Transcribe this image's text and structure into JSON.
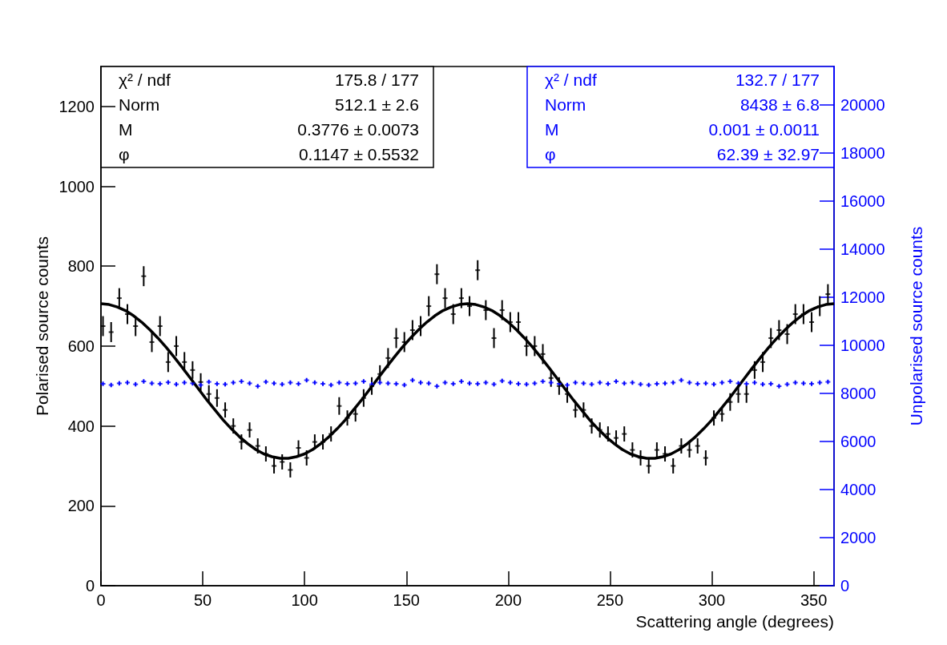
{
  "chart_data": {
    "type": "scatter",
    "xlabel": "Scattering angle (degrees)",
    "ylabel": "Polarised source counts",
    "y2label": "Unpolarised source counts",
    "xlim": [
      0,
      360
    ],
    "xticks": [
      0,
      50,
      100,
      150,
      200,
      250,
      300,
      350
    ],
    "ylim": [
      0,
      1300
    ],
    "yticks": [
      0,
      200,
      400,
      600,
      800,
      1000,
      1200
    ],
    "y2lim": [
      0,
      21600
    ],
    "y2ticks": [
      0,
      2000,
      4000,
      6000,
      8000,
      10000,
      12000,
      14000,
      16000,
      18000,
      20000
    ],
    "annotations": [
      "χ² / ndf",
      "175.8 / 177",
      "Norm",
      "512.1 ± 2.6",
      "M",
      "0.3776 ± 0.0073",
      "φ",
      "0.1147 ± 0.5532",
      "χ² / ndf",
      "132.7 / 177",
      "Norm",
      "8438 ± 6.8",
      "M",
      "0.001 ± 0.0011",
      "φ",
      "62.39 ± 32.97"
    ],
    "series": [
      {
        "color": "#000000",
        "x": [
          1,
          5,
          9,
          13,
          17,
          21,
          25,
          29,
          33,
          37,
          41,
          45,
          49,
          53,
          57,
          61,
          65,
          69,
          73,
          77,
          81,
          85,
          89,
          93,
          97,
          101,
          105,
          109,
          113,
          117,
          121,
          125,
          129,
          133,
          137,
          141,
          145,
          149,
          153,
          157,
          161,
          165,
          169,
          173,
          177,
          181,
          185,
          189,
          193,
          197,
          201,
          205,
          209,
          213,
          217,
          221,
          225,
          229,
          233,
          237,
          241,
          245,
          249,
          253,
          257,
          261,
          265,
          269,
          273,
          277,
          281,
          285,
          289,
          293,
          297,
          301,
          305,
          309,
          313,
          317,
          321,
          325,
          329,
          333,
          337,
          341,
          345,
          349,
          353,
          357
        ],
        "values": [
          650,
          635,
          720,
          680,
          650,
          775,
          610,
          650,
          560,
          600,
          560,
          540,
          510,
          480,
          470,
          440,
          400,
          360,
          390,
          350,
          330,
          300,
          310,
          290,
          345,
          320,
          360,
          360,
          380,
          450,
          420,
          430,
          470,
          500,
          530,
          570,
          620,
          610,
          640,
          650,
          700,
          780,
          720,
          680,
          720,
          700,
          790,
          690,
          620,
          690,
          660,
          660,
          600,
          600,
          580,
          520,
          500,
          480,
          440,
          440,
          400,
          390,
          380,
          370,
          380,
          340,
          320,
          300,
          340,
          330,
          300,
          350,
          340,
          350,
          320,
          420,
          430,
          460,
          480,
          480,
          540,
          560,
          620,
          640,
          630,
          680,
          680,
          660,
          700,
          730
        ],
        "errors": [
          25,
          25,
          25,
          25,
          25,
          25,
          25,
          25,
          25,
          25,
          25,
          22,
          22,
          22,
          22,
          19,
          19,
          19,
          19,
          19,
          19,
          19,
          19,
          19,
          19,
          19,
          19,
          19,
          19,
          22,
          19,
          19,
          22,
          22,
          22,
          25,
          25,
          25,
          25,
          25,
          25,
          25,
          25,
          25,
          25,
          25,
          25,
          25,
          25,
          25,
          25,
          25,
          25,
          25,
          25,
          22,
          22,
          22,
          19,
          19,
          19,
          19,
          19,
          19,
          19,
          19,
          19,
          19,
          19,
          19,
          19,
          19,
          19,
          19,
          19,
          19,
          19,
          22,
          22,
          22,
          22,
          25,
          25,
          25,
          25,
          25,
          25,
          25,
          25,
          25
        ]
      },
      {
        "type": "line",
        "color": "#000000",
        "x": [
          0,
          4,
          8,
          12,
          16,
          20,
          24,
          28,
          32,
          36,
          40,
          44,
          48,
          52,
          56,
          60,
          64,
          68,
          72,
          76,
          80,
          84,
          88,
          92,
          96,
          100,
          104,
          108,
          112,
          116,
          120,
          124,
          128,
          132,
          136,
          140,
          144,
          148,
          152,
          156,
          160,
          164,
          168,
          172,
          176,
          180,
          184,
          188,
          192,
          196,
          200,
          204,
          208,
          212,
          216,
          220,
          224,
          228,
          232,
          236,
          240,
          244,
          248,
          252,
          256,
          260,
          264,
          268,
          272,
          276,
          280,
          284,
          288,
          292,
          296,
          300,
          304,
          308,
          312,
          316,
          320,
          324,
          328,
          332,
          336,
          340,
          344,
          348,
          352,
          356,
          360
        ],
        "values": [
          706,
          704,
          698,
          689,
          676,
          660,
          641,
          620,
          597,
          572,
          546,
          519,
          492,
          465,
          440,
          415,
          393,
          373,
          356,
          341,
          330,
          323,
          319,
          319,
          323,
          330,
          341,
          356,
          373,
          393,
          415,
          440,
          465,
          492,
          519,
          546,
          572,
          597,
          620,
          641,
          660,
          676,
          689,
          698,
          704,
          706,
          704,
          698,
          689,
          676,
          660,
          641,
          620,
          597,
          572,
          546,
          519,
          492,
          465,
          440,
          415,
          393,
          373,
          356,
          341,
          330,
          323,
          319,
          319,
          323,
          330,
          341,
          356,
          373,
          393,
          415,
          440,
          465,
          492,
          519,
          546,
          572,
          597,
          620,
          641,
          660,
          676,
          689,
          698,
          704,
          706
        ]
      },
      {
        "axis": "y2",
        "color": "#0000ff",
        "x": [
          1,
          5,
          9,
          13,
          17,
          21,
          25,
          29,
          33,
          37,
          41,
          45,
          49,
          53,
          57,
          61,
          65,
          69,
          73,
          77,
          81,
          85,
          89,
          93,
          97,
          101,
          105,
          109,
          113,
          117,
          121,
          125,
          129,
          133,
          137,
          141,
          145,
          149,
          153,
          157,
          161,
          165,
          169,
          173,
          177,
          181,
          185,
          189,
          193,
          197,
          201,
          205,
          209,
          213,
          217,
          221,
          225,
          229,
          233,
          237,
          241,
          245,
          249,
          253,
          257,
          261,
          265,
          269,
          273,
          277,
          281,
          285,
          289,
          293,
          297,
          301,
          305,
          309,
          313,
          317,
          321,
          325,
          329,
          333,
          337,
          341,
          345,
          349,
          353,
          357
        ],
        "values": [
          8400,
          8350,
          8420,
          8450,
          8380,
          8500,
          8420,
          8400,
          8460,
          8380,
          8450,
          8420,
          8350,
          8480,
          8400,
          8380,
          8450,
          8500,
          8420,
          8300,
          8480,
          8420,
          8380,
          8450,
          8400,
          8550,
          8450,
          8400,
          8350,
          8450,
          8400,
          8420,
          8500,
          8380,
          8450,
          8420,
          8400,
          8350,
          8550,
          8450,
          8420,
          8300,
          8450,
          8400,
          8500,
          8420,
          8400,
          8450,
          8380,
          8520,
          8450,
          8400,
          8380,
          8420,
          8500,
          8450,
          8400,
          8350,
          8450,
          8420,
          8380,
          8450,
          8400,
          8500,
          8420,
          8450,
          8380,
          8350,
          8400,
          8420,
          8450,
          8550,
          8450,
          8400,
          8420,
          8380,
          8450,
          8500,
          8420,
          8400,
          8450,
          8380,
          8400,
          8300,
          8380,
          8450,
          8420,
          8400,
          8450,
          8480
        ],
        "errors": [
          92,
          92,
          92,
          92,
          92,
          92,
          92,
          92,
          92,
          92,
          92,
          92,
          92,
          92,
          92,
          92,
          92,
          92,
          92,
          92,
          92,
          92,
          92,
          92,
          92,
          92,
          92,
          92,
          92,
          92,
          92,
          92,
          92,
          92,
          92,
          92,
          92,
          92,
          92,
          92,
          92,
          92,
          92,
          92,
          92,
          92,
          92,
          92,
          92,
          92,
          92,
          92,
          92,
          92,
          92,
          92,
          92,
          92,
          92,
          92,
          92,
          92,
          92,
          92,
          92,
          92,
          92,
          92,
          92,
          92,
          92,
          92,
          92,
          92,
          92,
          92,
          92,
          92,
          92,
          92,
          92,
          92,
          92,
          92,
          92,
          92,
          92,
          92,
          92,
          92
        ]
      }
    ]
  }
}
